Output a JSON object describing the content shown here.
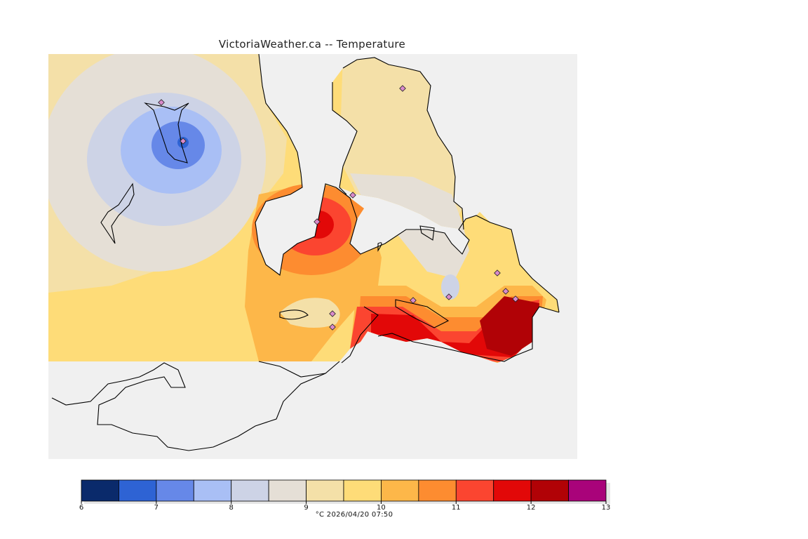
{
  "title": "VictoriaWeather.ca -- Temperature",
  "legend": {
    "ticks": [
      "6",
      "7",
      "8",
      "9",
      "10",
      "11",
      "12",
      "13"
    ],
    "bins": [
      {
        "from": 6.0,
        "to": 6.5,
        "color": "#0a2a6b"
      },
      {
        "from": 6.5,
        "to": 7.0,
        "color": "#2e63d4"
      },
      {
        "from": 7.0,
        "to": 7.5,
        "color": "#6688e8"
      },
      {
        "from": 7.5,
        "to": 8.0,
        "color": "#a9bff5"
      },
      {
        "from": 8.0,
        "to": 8.5,
        "color": "#cdd3e6"
      },
      {
        "from": 8.5,
        "to": 9.0,
        "color": "#e5dfd6"
      },
      {
        "from": 9.0,
        "to": 9.5,
        "color": "#f4e0a8"
      },
      {
        "from": 9.5,
        "to": 10.0,
        "color": "#fedc78"
      },
      {
        "from": 10.0,
        "to": 10.5,
        "color": "#fdb749"
      },
      {
        "from": 10.5,
        "to": 11.0,
        "color": "#fd8c30"
      },
      {
        "from": 11.0,
        "to": 11.5,
        "color": "#fb4530"
      },
      {
        "from": 11.5,
        "to": 12.0,
        "color": "#e20808"
      },
      {
        "from": 12.0,
        "to": 12.5,
        "color": "#b10206"
      },
      {
        "from": 12.5,
        "to": 13.0,
        "color": "#a9037a"
      }
    ]
  },
  "caption": "°C  2026/04/20 07:50"
}
